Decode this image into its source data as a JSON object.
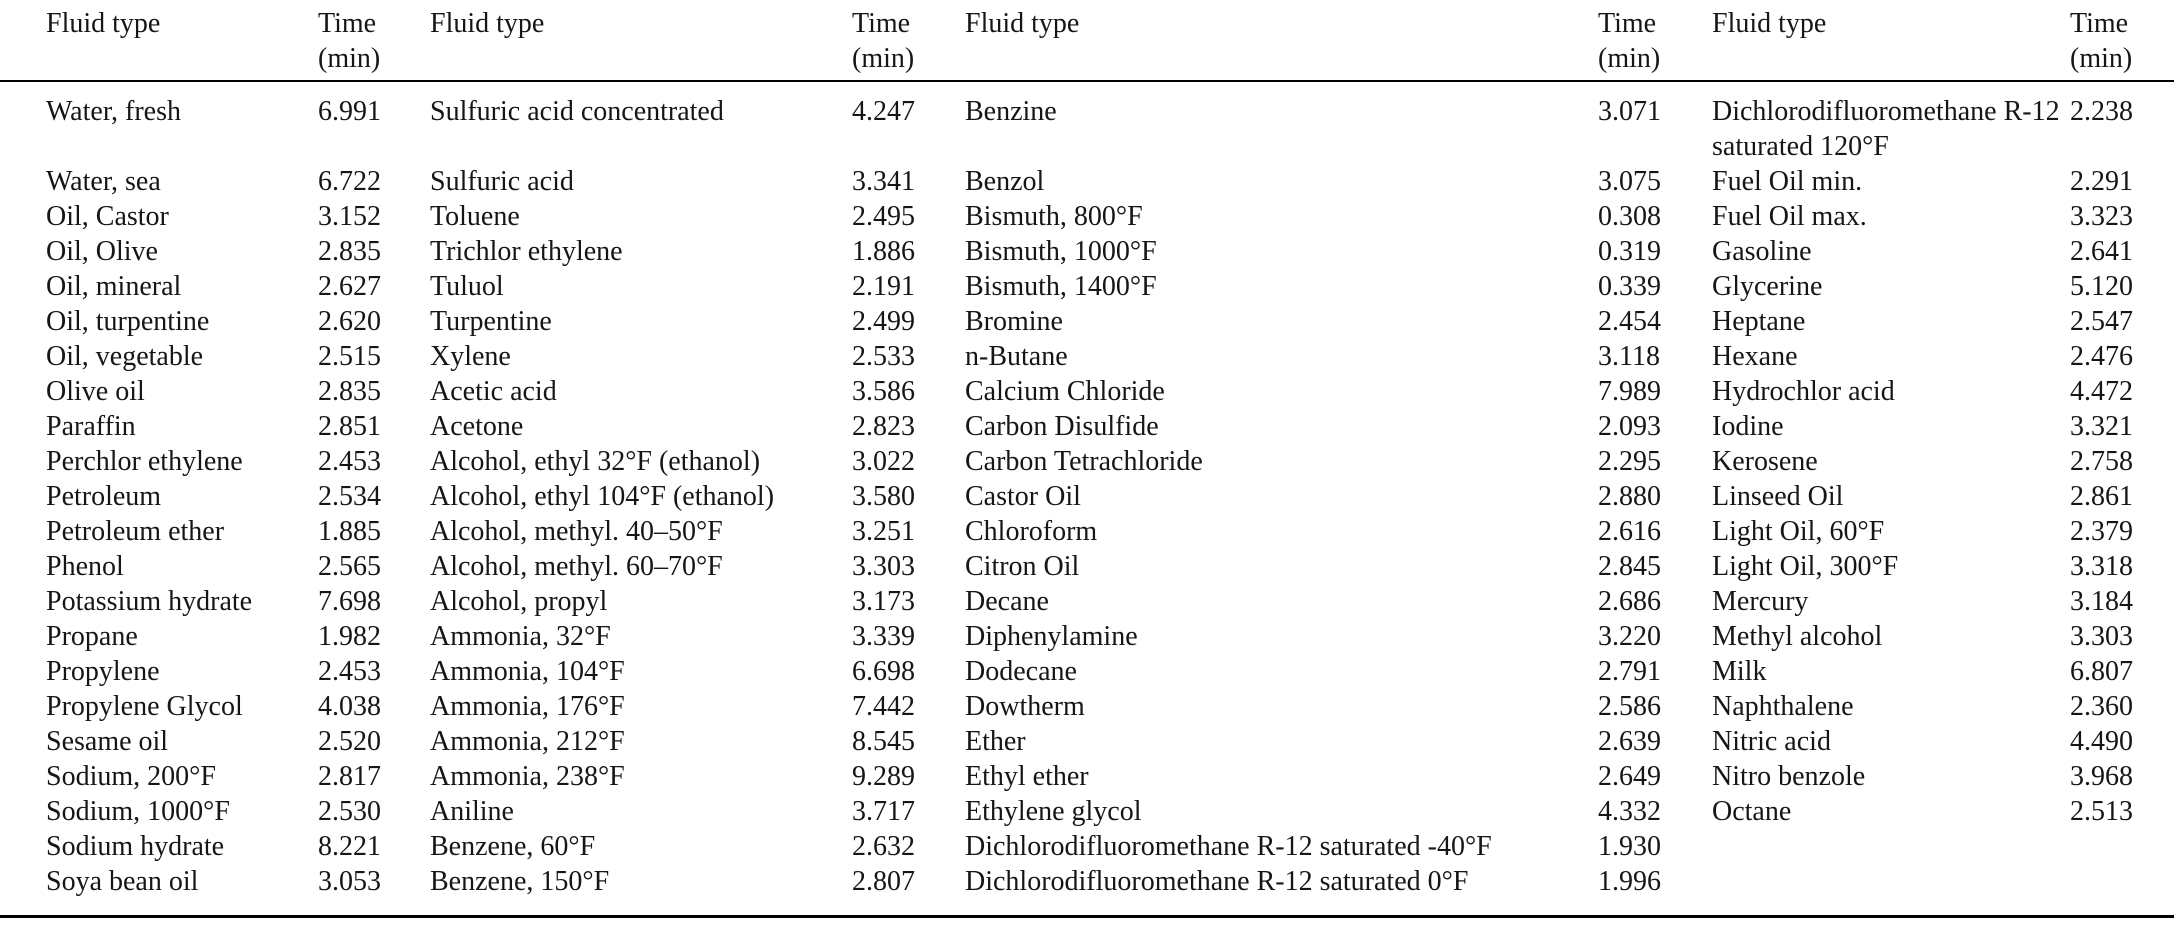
{
  "table": {
    "colors": {
      "text": "#161616",
      "rule": "#000000",
      "background": "#ffffff"
    },
    "header": {
      "fluid_label": "Fluid type",
      "time_label": "Time\n(min)"
    },
    "groups": [
      {
        "rows": [
          [
            "Water, fresh",
            "6.991"
          ],
          [
            "Water, sea",
            "6.722"
          ],
          [
            "Oil, Castor",
            "3.152"
          ],
          [
            "Oil, Olive",
            "2.835"
          ],
          [
            "Oil, mineral",
            "2.627"
          ],
          [
            "Oil, turpentine",
            "2.620"
          ],
          [
            "Oil, vegetable",
            "2.515"
          ],
          [
            "Olive oil",
            "2.835"
          ],
          [
            "Paraffin",
            "2.851"
          ],
          [
            "Perchlor ethylene",
            "2.453"
          ],
          [
            "Petroleum",
            "2.534"
          ],
          [
            "Petroleum ether",
            "1.885"
          ],
          [
            "Phenol",
            "2.565"
          ],
          [
            "Potassium hydrate",
            "7.698"
          ],
          [
            "Propane",
            "1.982"
          ],
          [
            "Propylene",
            "2.453"
          ],
          [
            "Propylene Glycol",
            "4.038"
          ],
          [
            "Sesame oil",
            "2.520"
          ],
          [
            "Sodium, 200°F",
            "2.817"
          ],
          [
            "Sodium, 1000°F",
            "2.530"
          ],
          [
            "Sodium hydrate",
            "8.221"
          ],
          [
            "Soya bean oil",
            "3.053"
          ]
        ]
      },
      {
        "rows": [
          [
            "Sulfuric acid concentrated",
            "4.247"
          ],
          [
            "Sulfuric acid",
            "3.341"
          ],
          [
            "Toluene",
            "2.495"
          ],
          [
            "Trichlor ethylene",
            "1.886"
          ],
          [
            "Tuluol",
            "2.191"
          ],
          [
            "Turpentine",
            "2.499"
          ],
          [
            "Xylene",
            "2.533"
          ],
          [
            "Acetic acid",
            "3.586"
          ],
          [
            "Acetone",
            "2.823"
          ],
          [
            "Alcohol, ethyl 32°F (ethanol)",
            "3.022"
          ],
          [
            "Alcohol, ethyl 104°F (ethanol)",
            "3.580"
          ],
          [
            "Alcohol, methyl. 40–50°F",
            "3.251"
          ],
          [
            "Alcohol, methyl. 60–70°F",
            "3.303"
          ],
          [
            "Alcohol, propyl",
            "3.173"
          ],
          [
            "Ammonia, 32°F",
            "3.339"
          ],
          [
            "Ammonia, 104°F",
            "6.698"
          ],
          [
            "Ammonia, 176°F",
            "7.442"
          ],
          [
            "Ammonia, 212°F",
            "8.545"
          ],
          [
            "Ammonia, 238°F",
            "9.289"
          ],
          [
            "Aniline",
            "3.717"
          ],
          [
            "Benzene, 60°F",
            "2.632"
          ],
          [
            "Benzene, 150°F",
            "2.807"
          ]
        ]
      },
      {
        "rows": [
          [
            "Benzine",
            "3.071"
          ],
          [
            "Benzol",
            "3.075"
          ],
          [
            "Bismuth, 800°F",
            "0.308"
          ],
          [
            "Bismuth, 1000°F",
            "0.319"
          ],
          [
            "Bismuth, 1400°F",
            "0.339"
          ],
          [
            "Bromine",
            "2.454"
          ],
          [
            "n-Butane",
            "3.118"
          ],
          [
            "Calcium Chloride",
            "7.989"
          ],
          [
            "Carbon Disulfide",
            "2.093"
          ],
          [
            "Carbon Tetrachloride",
            "2.295"
          ],
          [
            "Castor Oil",
            "2.880"
          ],
          [
            "Chloroform",
            "2.616"
          ],
          [
            "Citron Oil",
            "2.845"
          ],
          [
            "Decane",
            "2.686"
          ],
          [
            "Diphenylamine",
            "3.220"
          ],
          [
            "Dodecane",
            "2.791"
          ],
          [
            "Dowtherm",
            "2.586"
          ],
          [
            "Ether",
            "2.639"
          ],
          [
            "Ethyl ether",
            "2.649"
          ],
          [
            "Ethylene glycol",
            "4.332"
          ],
          [
            "Dichlorodifluoromethane R-12 saturated -40°F",
            "1.930"
          ],
          [
            "Dichlorodifluoromethane R-12 saturated 0°F",
            "1.996"
          ]
        ]
      },
      {
        "rows": [
          [
            "Dichlorodifluoromethane R-12 saturated 120°F",
            "2.238"
          ],
          [
            "Fuel Oil min.",
            "2.291"
          ],
          [
            "Fuel Oil max.",
            "3.323"
          ],
          [
            "Gasoline",
            "2.641"
          ],
          [
            "Glycerine",
            "5.120"
          ],
          [
            "Heptane",
            "2.547"
          ],
          [
            "Hexane",
            "2.476"
          ],
          [
            "Hydrochlor acid",
            "4.472"
          ],
          [
            "Iodine",
            "3.321"
          ],
          [
            "Kerosene",
            "2.758"
          ],
          [
            "Linseed Oil",
            "2.861"
          ],
          [
            "Light Oil, 60°F",
            "2.379"
          ],
          [
            "Light Oil, 300°F",
            "3.318"
          ],
          [
            "Mercury",
            "3.184"
          ],
          [
            "Methyl alcohol",
            "3.303"
          ],
          [
            "Milk",
            "6.807"
          ],
          [
            "Naphthalene",
            "2.360"
          ],
          [
            "Nitric acid",
            "4.490"
          ],
          [
            "Nitro benzole",
            "3.968"
          ],
          [
            "Octane",
            "2.513"
          ],
          [
            "",
            ""
          ],
          [
            "",
            ""
          ]
        ]
      }
    ]
  }
}
